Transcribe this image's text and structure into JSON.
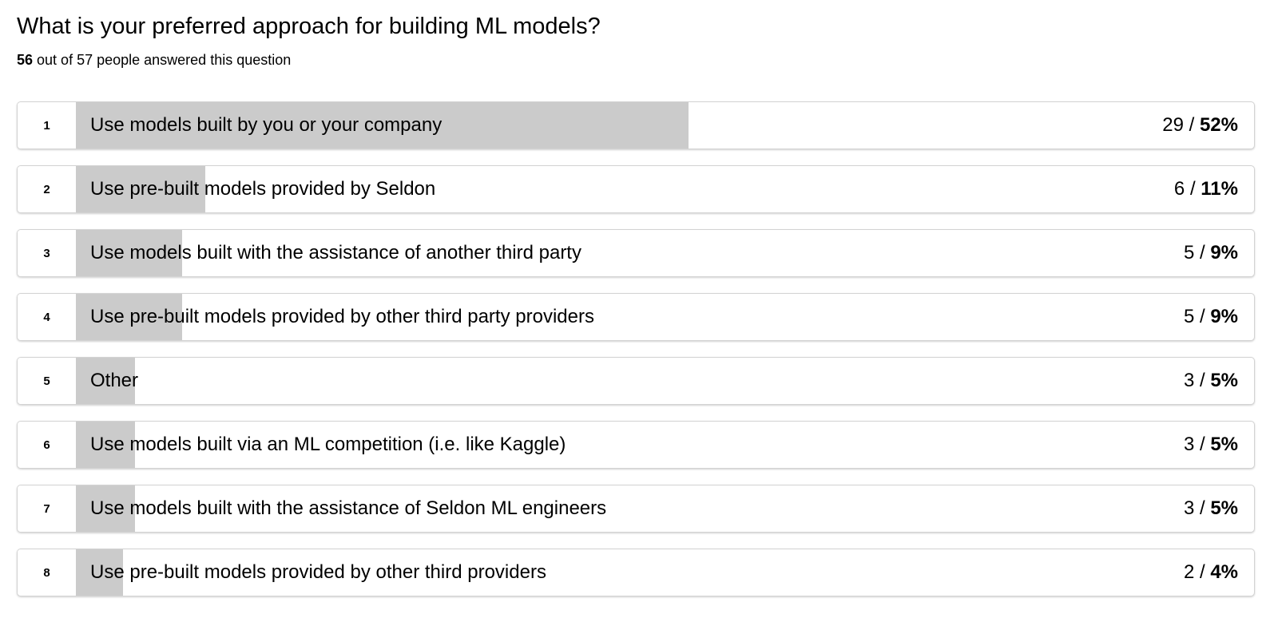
{
  "page": {
    "title": "What is your preferred approach for building ML models?",
    "subtitle_bold": "56",
    "subtitle_rest": " out of 57 people answered this question"
  },
  "colors": {
    "bar_fill": "#cbcbcb",
    "row_border": "#d3d3d3",
    "text": "#000000"
  },
  "chart_data": {
    "type": "bar",
    "orientation": "horizontal",
    "title": "What is your preferred approach for building ML models?",
    "subtitle": "56 out of 57 people answered this question",
    "ranks": [
      "1",
      "2",
      "3",
      "4",
      "5",
      "6",
      "7",
      "8"
    ],
    "categories": [
      "Use models built by you or your company",
      "Use pre-built models provided by Seldon",
      "Use models built with the assistance of another third party",
      "Use pre-built models provided by other third party providers",
      "Other",
      "Use models built via an ML competition (i.e. like Kaggle)",
      "Use models built with the assistance of Seldon ML engineers",
      "Use pre-built models provided by other third providers"
    ],
    "values": [
      29,
      6,
      5,
      5,
      3,
      3,
      3,
      2
    ],
    "percents": [
      52,
      11,
      9,
      9,
      5,
      5,
      5,
      4
    ],
    "value_separator": " / ",
    "percent_suffix": "%",
    "answered": 56,
    "total": 57,
    "xlim": [
      0,
      100
    ],
    "legend": false,
    "grid": false
  }
}
